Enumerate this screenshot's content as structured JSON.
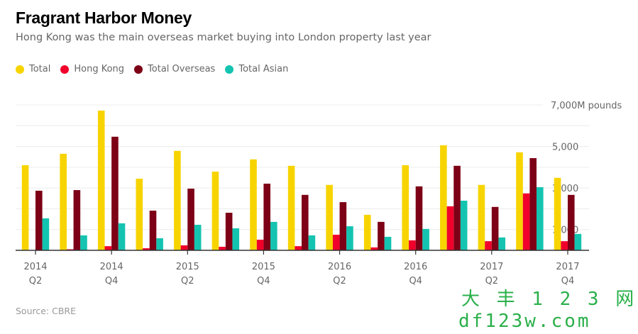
{
  "title": "Fragrant Harbor Money",
  "subtitle": "Hong Kong was the main overseas market buying into London property last year",
  "source": "Source: CBRE",
  "watermark": {
    "line1": "大 丰 1 2 3 网",
    "line2": "df123w.com"
  },
  "chart_data": {
    "type": "bar",
    "title": "Fragrant Harbor Money",
    "ylabel": "",
    "yunit": "M pounds",
    "ylim": [
      0,
      7000
    ],
    "yticks": [
      {
        "value": 7000,
        "label": "7,000M pounds"
      },
      {
        "value": 5000,
        "label": "5,000"
      },
      {
        "value": 3000,
        "label": "3,000"
      },
      {
        "value": 1000,
        "label": "1,000"
      }
    ],
    "grid": true,
    "legend_position": "top-left",
    "categories": [
      "2014 Q2",
      "2014 Q3",
      "2014 Q4",
      "2015 Q1",
      "2015 Q2",
      "2015 Q3",
      "2015 Q4",
      "2016 Q1",
      "2016 Q2",
      "2016 Q3",
      "2016 Q4",
      "2017 Q1",
      "2017 Q2",
      "2017 Q3",
      "2017 Q4"
    ],
    "xticks": [
      {
        "index": 0,
        "year": "2014",
        "q": "Q2"
      },
      {
        "index": 2,
        "year": "2014",
        "q": "Q4"
      },
      {
        "index": 4,
        "year": "2015",
        "q": "Q2"
      },
      {
        "index": 6,
        "year": "2015",
        "q": "Q4"
      },
      {
        "index": 8,
        "year": "2016",
        "q": "Q2"
      },
      {
        "index": 10,
        "year": "2016",
        "q": "Q4"
      },
      {
        "index": 12,
        "year": "2017",
        "q": "Q2"
      },
      {
        "index": 14,
        "year": "2017",
        "q": "Q4"
      }
    ],
    "series": [
      {
        "name": "Total",
        "color": "#f7d400",
        "values": [
          4100,
          4650,
          6730,
          3450,
          4790,
          3790,
          4380,
          4070,
          3150,
          1710,
          4100,
          5060,
          3150,
          4720,
          3490
        ]
      },
      {
        "name": "Hong Kong",
        "color": "#f0002a",
        "values": [
          0,
          50,
          200,
          100,
          240,
          170,
          510,
          200,
          750,
          140,
          480,
          2120,
          440,
          2740,
          440
        ]
      },
      {
        "name": "Total Overseas",
        "color": "#7d0016",
        "values": [
          2870,
          2900,
          5470,
          1910,
          2970,
          1810,
          3210,
          2670,
          2320,
          1370,
          3080,
          4070,
          2090,
          4440,
          2670
        ]
      },
      {
        "name": "Total Asian",
        "color": "#14c4b0",
        "values": [
          1540,
          720,
          1300,
          580,
          1230,
          1060,
          1370,
          720,
          1160,
          650,
          1030,
          2390,
          620,
          3040,
          790
        ]
      }
    ]
  }
}
